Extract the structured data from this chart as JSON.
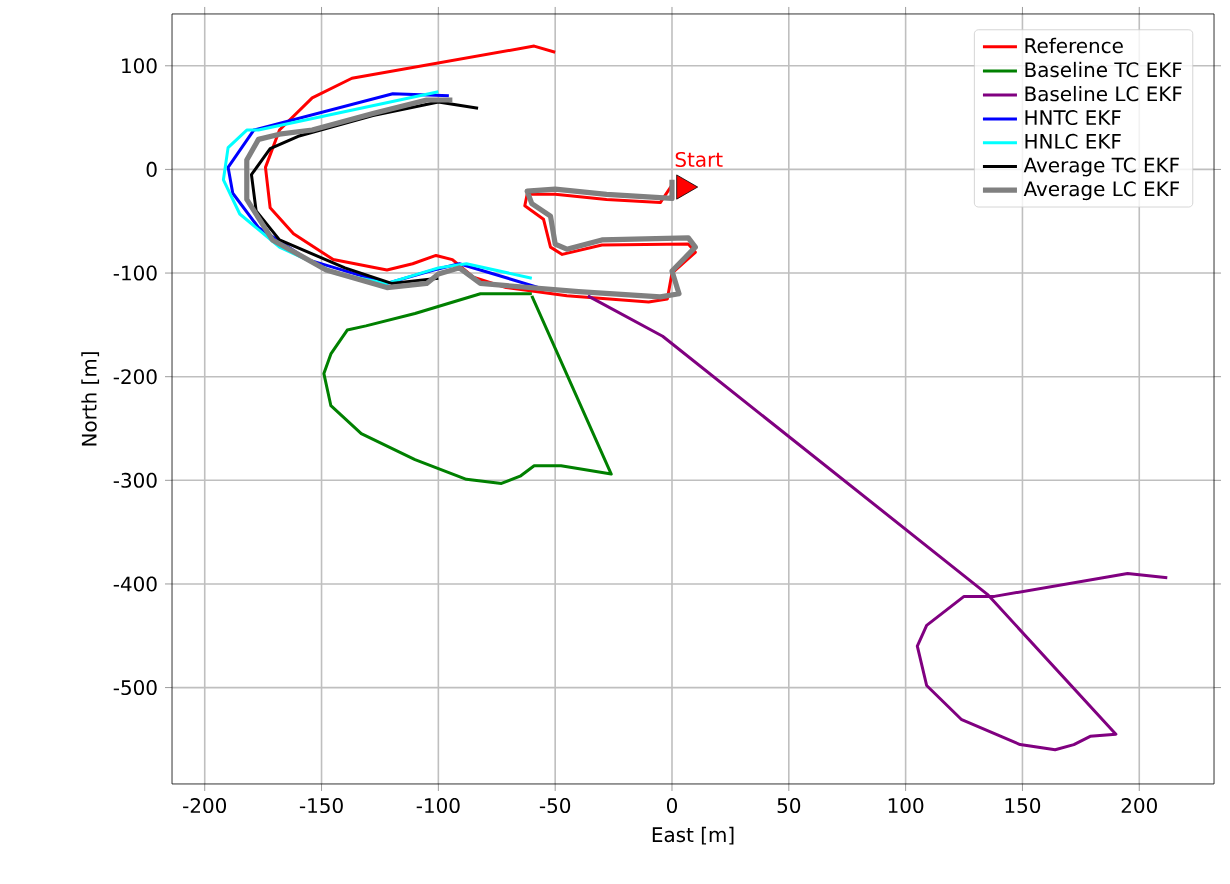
{
  "chart_data": {
    "type": "line",
    "xlabel": "East [m]",
    "ylabel": "North [m]",
    "xlim": [
      -214,
      232
    ],
    "ylim": [
      -593,
      150
    ],
    "xticks": [
      -200,
      -150,
      -100,
      -50,
      0,
      50,
      100,
      150,
      200
    ],
    "yticks": [
      -500,
      -400,
      -300,
      -200,
      -100,
      0,
      100
    ],
    "grid": true,
    "legend": "top right",
    "annotations": [
      {
        "text": "Start",
        "x": 0,
        "y": 0
      }
    ],
    "series": [
      {
        "name": "Reference",
        "color": "#ff0000",
        "x": [
          0,
          -5,
          -28,
          -50,
          -62,
          -63,
          -55,
          -52,
          -47,
          -30,
          7,
          10,
          0,
          -2,
          -10,
          -45,
          -71,
          -85,
          -94,
          -101,
          -111,
          -122,
          -145,
          -162,
          -172,
          -174,
          -168,
          -154,
          -137,
          -59,
          -50
        ],
        "values": [
          -15,
          -32,
          -29,
          -24,
          -24,
          -35,
          -48,
          -75,
          -82,
          -73,
          -72,
          -80,
          -100,
          -125,
          -128,
          -122,
          -114,
          -104,
          -87,
          -83,
          -91,
          -97,
          -87,
          -62,
          -37,
          2,
          38,
          69,
          88,
          119,
          113
        ]
      },
      {
        "name": "Baseline TC EKF",
        "color": "#008000",
        "x": [
          -60,
          -26,
          -47.5,
          -59,
          -65,
          -73,
          -88,
          -110,
          -133,
          -146,
          -149,
          -146,
          -139,
          -131,
          -110,
          -82,
          -60
        ],
        "values": [
          -122,
          -294,
          -286,
          -286,
          -296,
          -303,
          -299,
          -280,
          -255,
          -228,
          -197,
          -178,
          -155,
          -151,
          -139,
          -120,
          -120
        ]
      },
      {
        "name": "Baseline LC EKF",
        "color": "#800080",
        "x": [
          -36,
          -4,
          135,
          190,
          179,
          172,
          164,
          149,
          124,
          109,
          105,
          109,
          125,
          138,
          195,
          212
        ],
        "values": [
          -122,
          -161,
          -410,
          -545,
          -547,
          -555,
          -560,
          -555,
          -531,
          -498,
          -460,
          -440,
          -412,
          -412,
          -390,
          -394
        ]
      },
      {
        "name": "HNTC EKF",
        "color": "#0000ff",
        "x": [
          -57,
          -91,
          -102,
          -122,
          -156,
          -177,
          -188,
          -190,
          -179,
          -119.5,
          -95.5
        ],
        "values": [
          -114,
          -91,
          -97,
          -110,
          -87,
          -56,
          -23,
          2,
          38,
          73,
          71
        ]
      },
      {
        "name": "HNLC EKF",
        "color": "#00ffff",
        "x": [
          -60,
          -88,
          -100,
          -122,
          -143,
          -168,
          -185,
          -192,
          -190,
          -182,
          -177,
          -100
        ],
        "values": [
          -105,
          -91,
          -95,
          -110,
          -101,
          -75,
          -43,
          -10,
          21,
          38,
          38,
          75
        ]
      },
      {
        "name": "Average TC EKF",
        "color": "#000000",
        "x": [
          -100,
          -120,
          -140,
          -168,
          -178,
          -180,
          -172,
          -160,
          -128,
          -100,
          -83
        ],
        "values": [
          -105,
          -110,
          -95,
          -68,
          -40,
          -5,
          20,
          32,
          52,
          65,
          59
        ]
      },
      {
        "name": "Average LC EKF",
        "color": "#808080",
        "x": [
          0,
          0,
          -28,
          -50,
          -62,
          -60,
          -52,
          -50,
          -45,
          -30,
          7,
          10,
          0,
          3,
          -5,
          -40,
          -82,
          -91,
          -100,
          -105,
          -122,
          -148,
          -171,
          -182,
          -182,
          -177,
          -168,
          -154,
          -128,
          -105,
          -94
        ],
        "values": [
          -10,
          -28,
          -24,
          -19,
          -21,
          -33,
          -45,
          -72,
          -77,
          -68,
          -66,
          -75,
          -98,
          -120,
          -123,
          -118,
          -110,
          -95,
          -101,
          -110,
          -114,
          -97,
          -68,
          -29,
          9,
          29,
          34,
          38,
          54,
          67,
          67
        ]
      },
      {
        "type": "scatter",
        "marker": "triangle",
        "color": "#ff0000",
        "x": [
          5
        ],
        "values": [
          -17
        ]
      }
    ]
  }
}
